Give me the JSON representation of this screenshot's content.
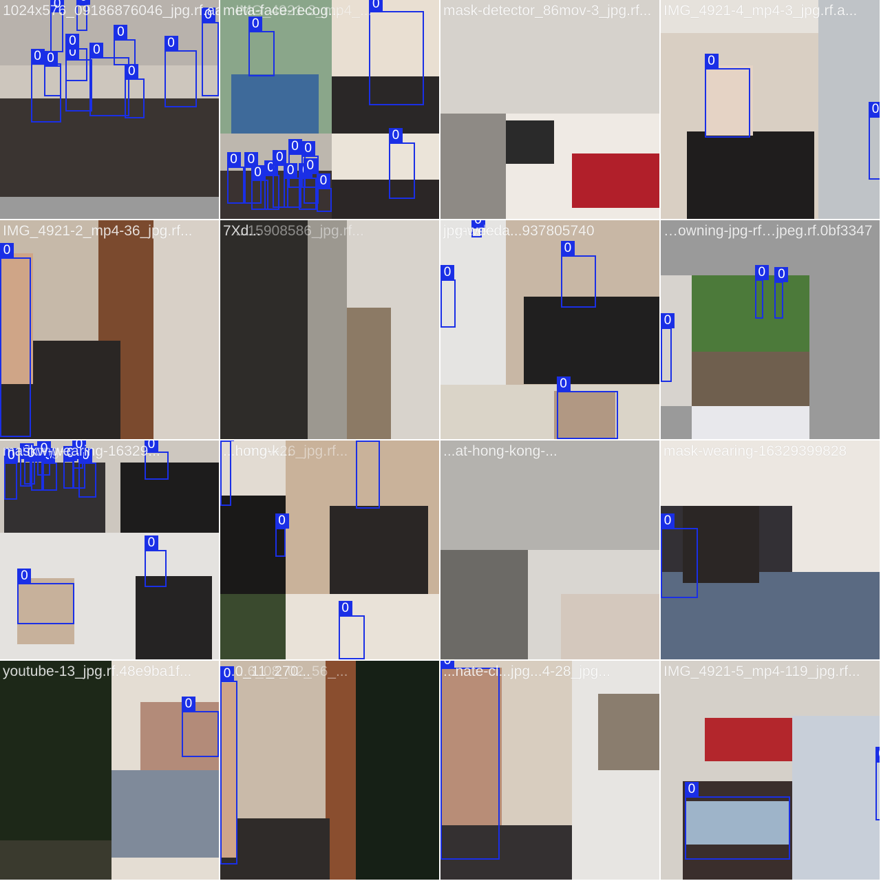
{
  "grid_title": "",
  "colors": {
    "box": "#1a2fe6",
    "label_text": "#ffffff",
    "gap": "#ffffff"
  },
  "tiles": [
    {
      "labels": [
        "1024x576_09186876046_jpg.rf.aac..."
      ],
      "boxes_count": 11,
      "regions": [
        [
          "#cdc6bd",
          [
            0,
            0,
            100,
            100
          ]
        ],
        [
          "#3a3431",
          [
            0,
            45,
            100,
            55
          ]
        ],
        [
          "#b8b2ac",
          [
            0,
            0,
            100,
            30
          ]
        ],
        [
          "#9a9a9a",
          [
            0,
            90,
            100,
            10
          ]
        ]
      ],
      "boxes": [
        [
          14,
          29,
          14,
          27
        ],
        [
          30,
          27,
          12,
          24
        ],
        [
          41,
          26,
          18,
          27
        ],
        [
          57,
          36,
          9,
          18
        ],
        [
          75,
          23,
          15,
          26
        ],
        [
          52,
          18,
          10,
          12
        ],
        [
          23,
          5,
          6,
          19
        ],
        [
          30,
          22,
          10,
          15
        ],
        [
          92,
          10,
          8,
          34
        ],
        [
          35,
          2,
          5,
          12
        ],
        [
          20,
          30,
          8,
          14
        ]
      ]
    },
    {
      "labels": [
        "meta-face-recog...",
        "IMG_4921-3_mp4_..."
      ],
      "boxes_count": 14,
      "regions": [
        [
          "#8aa68a",
          [
            0,
            0,
            51,
            61
          ]
        ],
        [
          "#3e6a9a",
          [
            5,
            34,
            40,
            27
          ]
        ],
        [
          "#e9dfd2",
          [
            51,
            0,
            49,
            61
          ]
        ],
        [
          "#2a2727",
          [
            51,
            35,
            49,
            26
          ]
        ],
        [
          "#bdb7ae",
          [
            0,
            61,
            51,
            39
          ]
        ],
        [
          "#3a3231",
          [
            0,
            78,
            51,
            22
          ]
        ],
        [
          "#ebe4d9",
          [
            51,
            61,
            49,
            39
          ]
        ],
        [
          "#2b2626",
          [
            51,
            82,
            49,
            18
          ]
        ]
      ],
      "boxes": [
        [
          13,
          14,
          12,
          21
        ],
        [
          68,
          5,
          25,
          43
        ],
        [
          77,
          65,
          12,
          26
        ],
        [
          31,
          70,
          8,
          16
        ],
        [
          37,
          71,
          8,
          15
        ],
        [
          3,
          76,
          8,
          17
        ],
        [
          11,
          76,
          8,
          17
        ],
        [
          14,
          82,
          8,
          14
        ],
        [
          20,
          80,
          7,
          16
        ],
        [
          24,
          75,
          7,
          20
        ],
        [
          29,
          81,
          8,
          14
        ],
        [
          36,
          81,
          8,
          15
        ],
        [
          38,
          79,
          7,
          14
        ],
        [
          44,
          86,
          7,
          11
        ]
      ]
    },
    {
      "labels": [
        "mask-detector_86mov-3_jpg.rf..."
      ],
      "boxes_count": 0,
      "regions": [
        [
          "#d6d2cc",
          [
            0,
            0,
            100,
            52
          ]
        ],
        [
          "#8e8a85",
          [
            0,
            52,
            30,
            48
          ]
        ],
        [
          "#efeae4",
          [
            30,
            52,
            70,
            48
          ]
        ],
        [
          "#b11f2a",
          [
            60,
            70,
            40,
            25
          ]
        ],
        [
          "#2a2a2a",
          [
            30,
            55,
            22,
            20
          ]
        ]
      ],
      "boxes": []
    },
    {
      "labels": [
        "IMG_4921-4_mp4-3_jpg.rf.a..."
      ],
      "boxes_count": 2,
      "regions": [
        [
          "#e6e2dc",
          [
            0,
            0,
            72,
            100
          ]
        ],
        [
          "#d9cfc3",
          [
            0,
            15,
            72,
            85
          ]
        ],
        [
          "#1f1d1d",
          [
            12,
            60,
            58,
            40
          ]
        ],
        [
          "#e5d3c5",
          [
            20,
            30,
            22,
            32
          ]
        ],
        [
          "#bfc3c7",
          [
            72,
            0,
            28,
            100
          ]
        ]
      ],
      "boxes": [
        [
          20,
          31,
          21,
          32
        ],
        [
          95,
          53,
          6,
          29
        ]
      ]
    },
    {
      "labels": [
        "IMG_4921-2_mp4-36_jpg.rf..."
      ],
      "boxes_count": 1,
      "regions": [
        [
          "#c6b9a9",
          [
            0,
            0,
            100,
            100
          ]
        ],
        [
          "#7b4a2e",
          [
            45,
            0,
            25,
            100
          ]
        ],
        [
          "#d8d0c7",
          [
            70,
            0,
            30,
            100
          ]
        ],
        [
          "#2a2624",
          [
            0,
            55,
            55,
            45
          ]
        ],
        [
          "#cfa587",
          [
            0,
            15,
            15,
            60
          ]
        ]
      ],
      "boxes": [
        [
          0,
          17,
          14,
          82
        ]
      ]
    },
    {
      "labels": [
        "7Xd...",
        "...15908586_jpg.rf..."
      ],
      "boxes_count": 0,
      "regions": [
        [
          "#9c9890",
          [
            0,
            0,
            58,
            100
          ]
        ],
        [
          "#d8d3cc",
          [
            58,
            0,
            42,
            100
          ]
        ],
        [
          "#2e2c29",
          [
            0,
            0,
            40,
            100
          ]
        ],
        [
          "#8c7a65",
          [
            58,
            40,
            20,
            60
          ]
        ]
      ],
      "boxes": []
    },
    {
      "labels": [
        "jpg-weeda...937805740",
        "mask-..."
      ],
      "boxes_count": 4,
      "regions": [
        [
          "#e5e4e2",
          [
            0,
            0,
            100,
            100
          ]
        ],
        [
          "#c8b7a5",
          [
            30,
            0,
            70,
            75
          ]
        ],
        [
          "#201f1f",
          [
            38,
            35,
            62,
            40
          ]
        ],
        [
          "#dad4c8",
          [
            0,
            75,
            100,
            25
          ]
        ],
        [
          "#b19883",
          [
            52,
            78,
            28,
            22
          ]
        ]
      ],
      "boxes": [
        [
          55,
          16,
          16,
          24
        ],
        [
          0,
          27,
          7,
          22
        ],
        [
          53,
          78,
          28,
          22
        ],
        [
          14,
          3,
          5,
          5
        ]
      ]
    },
    {
      "labels": [
        "…owning-jpg-rf…jpeg.rf.0bf3347"
      ],
      "boxes_count": 3,
      "regions": [
        [
          "#9a9a9a",
          [
            0,
            0,
            100,
            100
          ]
        ],
        [
          "#4c7a3a",
          [
            14,
            25,
            54,
            60
          ]
        ],
        [
          "#6f5f4e",
          [
            14,
            60,
            54,
            25
          ]
        ],
        [
          "#d7d3ce",
          [
            0,
            25,
            14,
            60
          ]
        ],
        [
          "#e8e8ec",
          [
            14,
            85,
            54,
            15
          ]
        ]
      ],
      "boxes": [
        [
          43,
          27,
          4,
          18
        ],
        [
          52,
          28,
          4,
          17
        ],
        [
          0,
          49,
          5,
          25
        ]
      ]
    },
    {
      "labels": [
        "maskw-wearing-16329...",
        "...hong-..."
      ],
      "boxes_count": 13,
      "regions": [
        [
          "#cdc7bf",
          [
            0,
            0,
            100,
            100
          ]
        ],
        [
          "#333031",
          [
            2,
            10,
            46,
            32
          ]
        ],
        [
          "#1d1c1c",
          [
            55,
            10,
            45,
            32
          ]
        ],
        [
          "#e4e2df",
          [
            0,
            42,
            100,
            58
          ]
        ],
        [
          "#c7b19b",
          [
            8,
            63,
            26,
            30
          ]
        ],
        [
          "#252323",
          [
            62,
            62,
            35,
            38
          ]
        ]
      ],
      "boxes": [
        [
          2,
          10,
          6,
          17
        ],
        [
          9,
          8,
          5,
          13
        ],
        [
          14,
          9,
          6,
          14
        ],
        [
          19,
          10,
          7,
          13
        ],
        [
          29,
          9,
          5,
          13
        ],
        [
          33,
          8,
          6,
          14
        ],
        [
          36,
          10,
          8,
          16
        ],
        [
          66,
          5,
          11,
          13
        ],
        [
          66,
          50,
          10,
          17
        ],
        [
          8,
          65,
          26,
          19
        ],
        [
          11,
          9,
          5,
          11
        ],
        [
          17,
          7,
          6,
          9
        ],
        [
          33,
          5,
          5,
          8
        ]
      ]
    },
    {
      "labels": [
        "...hong-k...",
        "...mov-26_jpg.rf..."
      ],
      "boxes_count": 4,
      "regions": [
        [
          "#e2dbd2",
          [
            0,
            0,
            100,
            100
          ]
        ],
        [
          "#1a1918",
          [
            0,
            25,
            30,
            75
          ]
        ],
        [
          "#c9b29a",
          [
            30,
            0,
            70,
            70
          ]
        ],
        [
          "#2a2625",
          [
            50,
            30,
            45,
            40
          ]
        ],
        [
          "#e9e2d8",
          [
            30,
            70,
            70,
            30
          ]
        ],
        [
          "#3a4a2e",
          [
            0,
            70,
            30,
            30
          ]
        ]
      ],
      "boxes": [
        [
          62,
          0,
          11,
          31
        ],
        [
          0,
          0,
          5,
          30
        ],
        [
          25,
          40,
          5,
          13
        ],
        [
          54,
          80,
          12,
          20
        ]
      ]
    },
    {
      "labels": [
        "...at-hong-kong-..."
      ],
      "boxes_count": 0,
      "regions": [
        [
          "#dcd9d4",
          [
            0,
            0,
            100,
            100
          ]
        ],
        [
          "#b4b2ae",
          [
            0,
            0,
            100,
            50
          ]
        ],
        [
          "#6c6a66",
          [
            0,
            50,
            40,
            50
          ]
        ],
        [
          "#d9d6d1",
          [
            40,
            50,
            60,
            50
          ]
        ],
        [
          "#d4c8bd",
          [
            55,
            70,
            45,
            30
          ]
        ]
      ],
      "boxes": []
    },
    {
      "labels": [
        "mask-wearing-16329399828"
      ],
      "boxes_count": 1,
      "regions": [
        [
          "#ece7e1",
          [
            0,
            0,
            100,
            100
          ]
        ],
        [
          "#333035",
          [
            0,
            30,
            60,
            40
          ]
        ],
        [
          "#5a6a82",
          [
            0,
            60,
            100,
            40
          ]
        ],
        [
          "#2b2625",
          [
            10,
            30,
            35,
            35
          ]
        ]
      ],
      "boxes": [
        [
          0,
          40,
          17,
          32
        ]
      ]
    },
    {
      "labels": [
        "youtube-13_jpg.rf.48e9ba1f..."
      ],
      "boxes_count": 1,
      "regions": [
        [
          "#1d2818",
          [
            0,
            0,
            51,
            82
          ]
        ],
        [
          "#e4ddd3",
          [
            51,
            0,
            49,
            100
          ]
        ],
        [
          "#3a3a2e",
          [
            0,
            82,
            51,
            18
          ]
        ],
        [
          "#b38b79",
          [
            64,
            19,
            36,
            52
          ]
        ],
        [
          "#7f8a9a",
          [
            51,
            50,
            49,
            40
          ]
        ]
      ],
      "boxes": [
        [
          83,
          23,
          17,
          21
        ]
      ]
    },
    {
      "labels": [
        "...0_11_270...",
        "...6_08_02_56_..."
      ],
      "boxes_count": 1,
      "regions": [
        [
          "#c9baa9",
          [
            0,
            0,
            62,
            100
          ]
        ],
        [
          "#8a4e2f",
          [
            48,
            0,
            14,
            100
          ]
        ],
        [
          "#162016",
          [
            62,
            0,
            38,
            100
          ]
        ],
        [
          "#2f2b29",
          [
            0,
            72,
            50,
            28
          ]
        ],
        [
          "#cfa58a",
          [
            0,
            10,
            8,
            80
          ]
        ]
      ],
      "boxes": [
        [
          0,
          9,
          8,
          84
        ]
      ]
    },
    {
      "labels": [
        "...nate-cl...jpg...4-28_jpg..."
      ],
      "boxes_count": 1,
      "regions": [
        [
          "#d8cdbf",
          [
            0,
            0,
            100,
            100
          ]
        ],
        [
          "#b88d77",
          [
            0,
            3,
            28,
            90
          ]
        ],
        [
          "#343031",
          [
            0,
            75,
            60,
            25
          ]
        ],
        [
          "#e7e5e2",
          [
            60,
            0,
            40,
            100
          ]
        ],
        [
          "#8a7d6e",
          [
            72,
            15,
            28,
            35
          ]
        ]
      ],
      "boxes": [
        [
          0,
          3,
          27,
          88
        ]
      ]
    },
    {
      "labels": [
        "IMG_4921-5_mp4-119_jpg.rf..."
      ],
      "boxes_count": 2,
      "regions": [
        [
          "#d5d0c9",
          [
            0,
            0,
            100,
            100
          ]
        ],
        [
          "#b3262c",
          [
            20,
            26,
            54,
            20
          ]
        ],
        [
          "#3a2e2c",
          [
            10,
            55,
            50,
            45
          ]
        ],
        [
          "#9eb4c9",
          [
            11,
            64,
            48,
            20
          ]
        ],
        [
          "#c8cfd9",
          [
            60,
            25,
            40,
            75
          ]
        ]
      ],
      "boxes": [
        [
          11,
          62,
          48,
          29
        ],
        [
          98,
          46,
          5,
          27
        ]
      ]
    }
  ]
}
